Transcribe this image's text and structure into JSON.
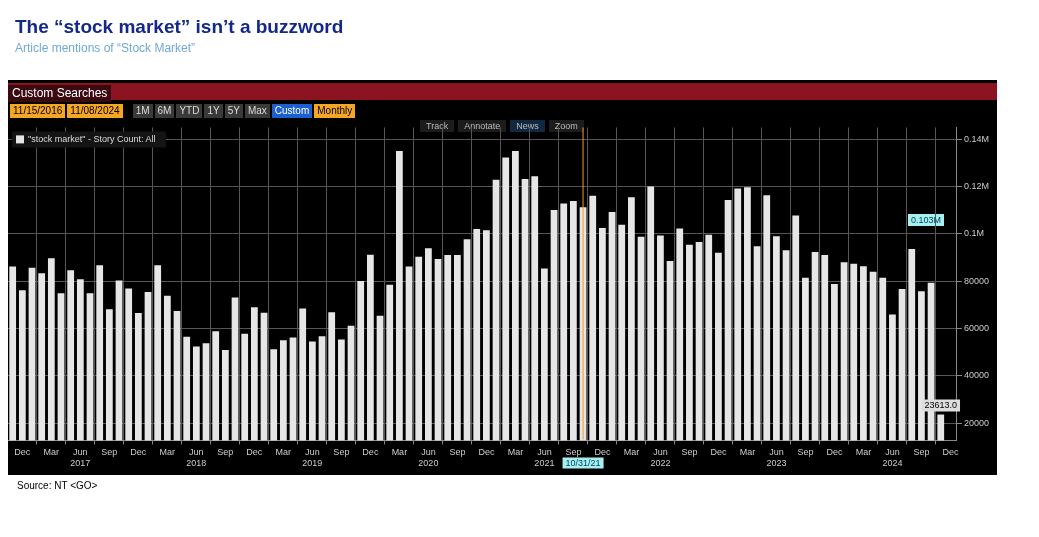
{
  "chart_data": {
    "type": "bar",
    "title": "The “stock market” isn’t a buzzword",
    "subtitle": "Article mentions of “Stock Market”",
    "annotations": [
      "Custom Searches",
      "11/15/2016",
      "11/08/2024",
      "1M",
      "6M",
      "YTD",
      "1Y",
      "5Y",
      "Max",
      "Custom",
      "Monthly",
      "Track",
      "Annotate",
      "News",
      "Zoom",
      "Source: NT <GO>",
      "0.103M"
    ],
    "x": [
      "2016-11",
      "2016-12",
      "2017-01",
      "2017-02",
      "2017-03",
      "2017-04",
      "2017-05",
      "2017-06",
      "2017-07",
      "2017-08",
      "2017-09",
      "2017-10",
      "2017-11",
      "2017-12",
      "2018-01",
      "2018-02",
      "2018-03",
      "2018-04",
      "2018-05",
      "2018-06",
      "2018-07",
      "2018-08",
      "2018-09",
      "2018-10",
      "2018-11",
      "2018-12",
      "2019-01",
      "2019-02",
      "2019-03",
      "2019-04",
      "2019-05",
      "2019-06",
      "2019-07",
      "2019-08",
      "2019-09",
      "2019-10",
      "2019-11",
      "2019-12",
      "2020-01",
      "2020-02",
      "2020-03",
      "2020-04",
      "2020-05",
      "2020-06",
      "2020-07",
      "2020-08",
      "2020-09",
      "2020-10",
      "2020-11",
      "2020-12",
      "2021-01",
      "2021-02",
      "2021-03",
      "2021-04",
      "2021-05",
      "2021-06",
      "2021-07",
      "2021-08",
      "2021-09",
      "2021-10",
      "2021-11",
      "2021-12",
      "2022-01",
      "2022-02",
      "2022-03",
      "2022-04",
      "2022-05",
      "2022-06",
      "2022-07",
      "2022-08",
      "2022-09",
      "2022-10",
      "2022-11",
      "2022-12",
      "2023-01",
      "2023-02",
      "2023-03",
      "2023-04",
      "2023-05",
      "2023-06",
      "2023-07",
      "2023-08",
      "2023-09",
      "2023-10",
      "2023-11",
      "2023-12",
      "2024-01",
      "2024-02",
      "2024-03",
      "2024-04",
      "2024-05",
      "2024-06",
      "2024-07",
      "2024-08",
      "2024-09",
      "2024-10",
      "2024-11"
    ],
    "series": [
      {
        "name": "\"stock market\" - Story Count: All",
        "color": "#e6e6e6",
        "values": [
          86200,
          76200,
          85700,
          83400,
          89700,
          74900,
          84600,
          80800,
          74900,
          86700,
          68100,
          80300,
          76900,
          66500,
          75400,
          86700,
          73800,
          67400,
          56500,
          52400,
          53800,
          58800,
          50900,
          73100,
          57800,
          69000,
          66700,
          51200,
          55000,
          56200,
          68500,
          54500,
          56700,
          66900,
          55400,
          61200,
          80100,
          91200,
          65400,
          78500,
          135000,
          86200,
          90300,
          93900,
          89400,
          91100,
          91100,
          97700,
          102100,
          101500,
          122900,
          132300,
          135000,
          123200,
          124300,
          85400,
          110100,
          112800,
          113900,
          111200,
          116100,
          102500,
          109200,
          103800,
          115500,
          98800,
          120000,
          99300,
          88500,
          102300,
          95400,
          96600,
          99600,
          92000,
          114300,
          119200,
          119700,
          94800,
          116300,
          99000,
          93100,
          107800,
          81500,
          92300,
          91100,
          78800,
          88000,
          87400,
          86300,
          84000,
          81500,
          65900,
          76700,
          93600,
          75700,
          79300,
          23613
        ],
        "value_labels": [
          null,
          null,
          null,
          null,
          null,
          null,
          null,
          null,
          null,
          null,
          null,
          null,
          null,
          null,
          null,
          null,
          null,
          null,
          null,
          null,
          null,
          null,
          null,
          null,
          null,
          null,
          null,
          null,
          null,
          null,
          null,
          null,
          null,
          null,
          null,
          null,
          null,
          null,
          null,
          null,
          null,
          null,
          null,
          null,
          null,
          null,
          null,
          null,
          null,
          null,
          null,
          null,
          null,
          null,
          null,
          null,
          null,
          null,
          null,
          null,
          null,
          null,
          null,
          null,
          null,
          null,
          null,
          null,
          null,
          null,
          null,
          null,
          null,
          null,
          null,
          null,
          null,
          null,
          null,
          null,
          null,
          null,
          null,
          null,
          null,
          null,
          null,
          null,
          null,
          null,
          null,
          null,
          null,
          null,
          null,
          null,
          "23613.0"
        ]
      }
    ],
    "xlim": [
      "2016-10-17",
      "2024-12-22"
    ],
    "xticks": [
      {
        "value": "2016-12",
        "label": "Dec"
      },
      {
        "value": "2017-03",
        "label": "Mar"
      },
      {
        "value": "2017-06",
        "label": "Jun\n2017"
      },
      {
        "value": "2017-09",
        "label": "Sep"
      },
      {
        "value": "2017-12",
        "label": "Dec"
      },
      {
        "value": "2018-03",
        "label": "Mar"
      },
      {
        "value": "2018-06",
        "label": "Jun\n2018"
      },
      {
        "value": "2018-09",
        "label": "Sep"
      },
      {
        "value": "2018-12",
        "label": "Dec"
      },
      {
        "value": "2019-03",
        "label": "Mar"
      },
      {
        "value": "2019-06",
        "label": "Jun\n2019"
      },
      {
        "value": "2019-09",
        "label": "Sep"
      },
      {
        "value": "2019-12",
        "label": "Dec"
      },
      {
        "value": "2020-03",
        "label": "Mar"
      },
      {
        "value": "2020-06",
        "label": "Jun\n2020"
      },
      {
        "value": "2020-09",
        "label": "Sep"
      },
      {
        "value": "2020-12",
        "label": "Dec"
      },
      {
        "value": "2021-03",
        "label": "Mar"
      },
      {
        "value": "2021-06",
        "label": "Jun\n2021"
      },
      {
        "value": "2021-09",
        "label": "Sep"
      },
      {
        "value": "2021-12",
        "label": "Dec"
      },
      {
        "value": "2022-03",
        "label": "Mar"
      },
      {
        "value": "2022-06",
        "label": "Jun\n2022"
      },
      {
        "value": "2022-09",
        "label": "Sep"
      },
      {
        "value": "2022-12",
        "label": "Dec"
      },
      {
        "value": "2023-03",
        "label": "Mar"
      },
      {
        "value": "2023-06",
        "label": "Jun\n2023"
      },
      {
        "value": "2023-09",
        "label": "Sep"
      },
      {
        "value": "2023-12",
        "label": "Dec"
      },
      {
        "value": "2024-03",
        "label": "Mar"
      },
      {
        "value": "2024-06",
        "label": "Jun\n2024"
      },
      {
        "value": "2024-09",
        "label": "Sep"
      },
      {
        "value": "2024-12",
        "label": "Dec"
      }
    ],
    "ylim": [
      12700,
      145000
    ],
    "yticks": [
      20000,
      40000,
      60000,
      80000,
      {
        "value": 100000,
        "label": "0.1M"
      },
      {
        "value": 120000,
        "label": "0.12M"
      },
      {
        "value": 140000,
        "label": "0.14M"
      }
    ],
    "ref_lines": [
      {
        "axis": "x",
        "value": "2021-10",
        "label": "10/31/21",
        "color": "#f39c12"
      }
    ],
    "grid": true,
    "legend": "top left"
  }
}
